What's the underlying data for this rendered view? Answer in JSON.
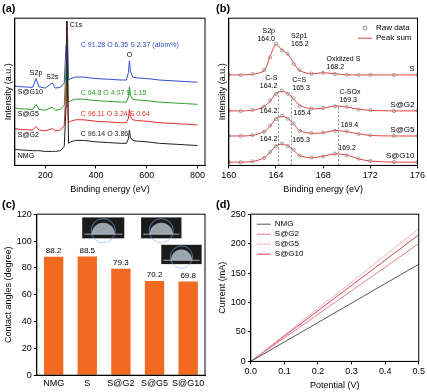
{
  "chart_data": [
    {
      "type": "line",
      "title": "(a)",
      "x_label": "Binding energy (eV)",
      "y_label": "Intensity (a.u.)",
      "x": [
        80,
        100,
        150,
        164,
        175,
        200,
        228,
        240,
        260,
        275,
        282,
        285,
        288,
        292,
        300,
        320,
        350,
        400,
        450,
        500,
        520,
        528,
        532,
        536,
        545,
        560,
        600,
        650,
        700,
        750,
        800
      ],
      "series": [
        {
          "name": "NMG",
          "color": "#222222",
          "composition": "C 96.14 O 3.86",
          "values": [
            1.1,
            1.05,
            1.0,
            1.0,
            1.0,
            0.95,
            0.95,
            0.95,
            1.0,
            1.3,
            4.0,
            9.8,
            5.0,
            1.5,
            1.6,
            1.7,
            1.7,
            1.6,
            1.55,
            1.5,
            1.5,
            1.8,
            2.4,
            1.9,
            1.7,
            1.65,
            1.6,
            1.5,
            1.45,
            1.4,
            1.35
          ]
        },
        {
          "name": "S@G2",
          "color": "#e0302a",
          "composition": "C 96.11 O 3.24 S 0.64",
          "values": [
            2.5,
            2.45,
            2.4,
            2.65,
            2.4,
            2.35,
            2.5,
            2.35,
            2.4,
            2.7,
            5.5,
            9.8,
            6.2,
            2.9,
            3.0,
            3.1,
            3.1,
            3.0,
            2.95,
            2.9,
            2.9,
            3.2,
            3.8,
            3.3,
            3.1,
            3.05,
            3.0,
            2.9,
            2.85,
            2.8,
            2.75
          ]
        },
        {
          "name": "S@G5",
          "color": "#2ca02c",
          "composition": "C 94.8 O 4.07 S 1.15",
          "values": [
            3.9,
            3.85,
            3.8,
            4.15,
            3.8,
            3.75,
            3.95,
            3.75,
            3.8,
            4.1,
            6.8,
            9.8,
            7.5,
            4.3,
            4.4,
            4.5,
            4.5,
            4.4,
            4.35,
            4.3,
            4.3,
            4.65,
            5.35,
            4.75,
            4.5,
            4.45,
            4.4,
            4.3,
            4.25,
            4.2,
            4.15
          ]
        },
        {
          "name": "S@G10",
          "color": "#2f4fd0",
          "composition": "C 91.28 O 6.35 S 2.37 (atom%)",
          "values": [
            5.4,
            5.35,
            5.3,
            5.9,
            5.35,
            5.25,
            5.6,
            5.25,
            5.3,
            5.6,
            8.2,
            9.8,
            8.8,
            5.8,
            5.9,
            6.0,
            6.0,
            5.9,
            5.85,
            5.8,
            5.8,
            6.3,
            7.1,
            6.4,
            6.0,
            5.95,
            5.9,
            5.8,
            5.75,
            5.7,
            5.65
          ]
        }
      ],
      "annotations": [
        {
          "text": "C1s",
          "x": 285
        },
        {
          "text": "O",
          "x": 532
        },
        {
          "text": "S2s",
          "x": 228
        },
        {
          "text": "S2p",
          "x": 164
        }
      ],
      "xlim": [
        80,
        830
      ],
      "xticks": [
        200,
        400,
        600,
        800
      ],
      "ylim": [
        0,
        10
      ],
      "tick_labels": "x",
      "grid": false
    },
    {
      "type": "line",
      "title": "(b)",
      "x_label": "Binding energy (eV)",
      "y_label": "Intensity (a.u.)",
      "x": [
        160,
        161,
        162,
        163,
        163.5,
        164,
        164.5,
        165,
        165.5,
        166,
        167,
        168,
        169,
        170,
        171,
        172,
        174,
        176
      ],
      "series": [
        {
          "name": "Raw data",
          "color": "#8a8a8a",
          "marker": "circle"
        },
        {
          "name": "Peak sum",
          "color": "#e8403a",
          "line_style": "solid"
        }
      ],
      "samples": [
        {
          "label": "S",
          "raw": [
            8.32,
            8.28,
            8.4,
            8.75,
            9.9,
            11.15,
            10.55,
            10.25,
            9.3,
            8.75,
            8.42,
            8.48,
            8.38,
            8.32,
            8.28,
            8.31,
            8.29,
            8.3
          ],
          "sum": [
            8.3,
            8.3,
            8.35,
            8.7,
            10.0,
            11.1,
            10.6,
            10.2,
            9.4,
            8.7,
            8.4,
            8.5,
            8.4,
            8.3,
            8.3,
            8.3,
            8.3,
            8.3
          ],
          "peaks": [
            {
              "name": "S2p",
              "value": 164.0,
              "label": "164.0"
            },
            {
              "name": "S2p1",
              "value": 165.2
            },
            {
              "name": "Oxidized S",
              "value": 168.2
            }
          ]
        },
        {
          "label": "S@G2",
          "raw": [
            5.02,
            4.98,
            5.08,
            5.38,
            5.95,
            6.55,
            6.85,
            6.55,
            6.15,
            5.45,
            5.22,
            5.27,
            5.42,
            5.38,
            5.12,
            5.06,
            4.99,
            5.01
          ],
          "sum": [
            5.0,
            5.0,
            5.05,
            5.4,
            5.9,
            6.6,
            6.8,
            6.6,
            6.1,
            5.5,
            5.2,
            5.25,
            5.45,
            5.35,
            5.15,
            5.05,
            5.0,
            5.0
          ],
          "peaks": [
            {
              "name": "C-S",
              "value": 164.2
            },
            {
              "name": "C=S",
              "value": 165.3
            },
            {
              "name": "C-SOx",
              "value": 169.3
            }
          ]
        },
        {
          "label": "S@G5",
          "raw": [
            2.72,
            2.69,
            2.77,
            3.08,
            3.65,
            4.25,
            4.55,
            4.28,
            3.85,
            3.18,
            2.97,
            3.02,
            3.18,
            3.12,
            2.88,
            2.77,
            2.71,
            2.7
          ],
          "sum": [
            2.7,
            2.7,
            2.75,
            3.1,
            3.6,
            4.3,
            4.5,
            4.3,
            3.8,
            3.2,
            2.95,
            3.0,
            3.2,
            3.1,
            2.9,
            2.75,
            2.7,
            2.7
          ],
          "peaks": [
            {
              "value": 164.2
            },
            {
              "value": 165.4
            },
            {
              "value": 169.4
            }
          ]
        },
        {
          "label": "S@G10",
          "raw": [
            0.32,
            0.29,
            0.37,
            0.68,
            1.25,
            1.75,
            2.0,
            1.78,
            1.45,
            0.88,
            0.72,
            0.83,
            1.08,
            0.93,
            0.62,
            0.41,
            0.31,
            0.3
          ],
          "sum": [
            0.3,
            0.3,
            0.35,
            0.7,
            1.2,
            1.8,
            1.95,
            1.8,
            1.4,
            0.9,
            0.7,
            0.85,
            1.05,
            0.95,
            0.6,
            0.4,
            0.3,
            0.3
          ],
          "peaks": [
            {
              "value": 164.2
            },
            {
              "value": 165.3
            },
            {
              "value": 169.2
            }
          ]
        }
      ],
      "xlim": [
        160,
        176
      ],
      "xticks": [
        160,
        164,
        168,
        172,
        176
      ],
      "ylim": [
        0,
        13.5
      ],
      "tick_labels": "x",
      "grid": false,
      "legend": "upper right"
    },
    {
      "type": "bar",
      "title": "(c)",
      "y_label": "Contact angles (degree)",
      "categories": [
        "NMG",
        "S",
        "S@G2",
        "S@G5",
        "S@G10"
      ],
      "values": [
        88.2,
        88.5,
        79.3,
        70.2,
        69.8
      ],
      "color": "#f26a21",
      "ylim": [
        0,
        120
      ],
      "yticks": [
        0,
        20,
        40,
        60,
        80,
        100,
        120
      ],
      "data_labels": true,
      "grid": false
    },
    {
      "type": "line",
      "title": "(d)",
      "x_label": "Potential (V)",
      "y_label": "Current (mA)",
      "x": [
        0,
        0.5
      ],
      "series": [
        {
          "name": "NMG",
          "color": "#555555",
          "values": [
            0,
            165
          ]
        },
        {
          "name": "S@G2",
          "color": "#e07f90",
          "values": [
            0,
            200
          ]
        },
        {
          "name": "S@G5",
          "color": "#f2b3c0",
          "values": [
            0,
            225
          ]
        },
        {
          "name": "S@G10",
          "color": "#d6454a",
          "values": [
            0,
            215
          ]
        }
      ],
      "xlim": [
        0,
        0.5
      ],
      "xticks": [
        {
          "value": 0,
          "label": "0.0"
        },
        0.1,
        0.2,
        0.3,
        0.4,
        0.5
      ],
      "ylim": [
        0,
        250
      ],
      "yticks": [
        0,
        50,
        100,
        150,
        200,
        250
      ],
      "grid": false,
      "legend": "upper left"
    }
  ]
}
